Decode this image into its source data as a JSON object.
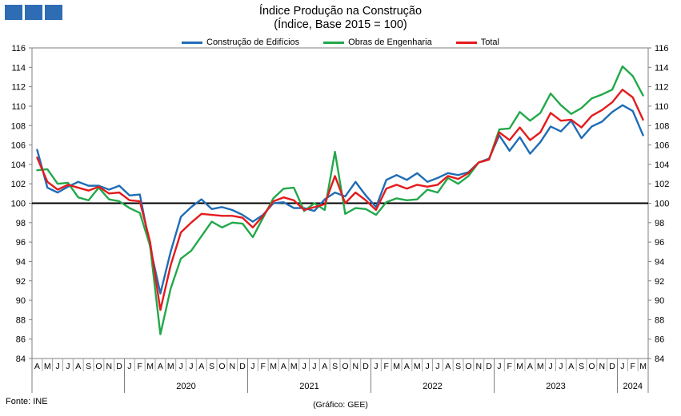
{
  "header": {
    "title_line1": "Índice Produção na Construção",
    "title_line2": "(Índice, Base 2015 = 100)"
  },
  "footer": {
    "source": "Fonte: INE",
    "credit": "(Gráfico: GEE)"
  },
  "colors": {
    "edificios": "#1f6db5",
    "engenharia": "#22a84a",
    "total": "#e41a1c",
    "logo": "#2e6db4"
  },
  "chart_data": {
    "type": "line",
    "title": "Índice Produção na Construção (Índice, Base 2015 = 100)",
    "ylim": [
      84,
      116
    ],
    "yticks": [
      84,
      86,
      88,
      90,
      92,
      94,
      96,
      98,
      100,
      102,
      104,
      106,
      108,
      110,
      112,
      114,
      116
    ],
    "reference_line": 100,
    "legend_position": "top-center",
    "month_labels": [
      "A",
      "M",
      "J",
      "J",
      "A",
      "S",
      "O",
      "N",
      "D",
      "J",
      "F",
      "M",
      "A",
      "M",
      "J",
      "J",
      "A",
      "S",
      "O",
      "N",
      "D",
      "J",
      "F",
      "M",
      "A",
      "M",
      "J",
      "J",
      "A",
      "S",
      "O",
      "N",
      "D",
      "J",
      "F",
      "M",
      "A",
      "M",
      "J",
      "J",
      "A",
      "S",
      "O",
      "N",
      "D",
      "J",
      "F",
      "M",
      "A",
      "M",
      "J",
      "J",
      "A",
      "S",
      "O",
      "N",
      "D",
      "J",
      "F",
      "M"
    ],
    "year_labels": [
      {
        "label": "2020",
        "start": 9,
        "end": 20
      },
      {
        "label": "2021",
        "start": 21,
        "end": 32
      },
      {
        "label": "2022",
        "start": 33,
        "end": 44
      },
      {
        "label": "2023",
        "start": 45,
        "end": 56
      },
      {
        "label": "2024",
        "start": 57,
        "end": 59
      }
    ],
    "year_separators": [
      9,
      21,
      33,
      45,
      57
    ],
    "series": [
      {
        "name": "Construção de Edifícios",
        "color_key": "edificios",
        "values": [
          105.5,
          101.6,
          101.1,
          101.7,
          102.2,
          101.8,
          101.8,
          101.4,
          101.8,
          100.8,
          100.9,
          95.5,
          90.7,
          95.0,
          98.6,
          99.6,
          100.4,
          99.4,
          99.6,
          99.3,
          98.8,
          98.1,
          98.8,
          100.0,
          100.1,
          99.5,
          99.5,
          99.2,
          100.4,
          101.1,
          100.7,
          102.2,
          100.8,
          99.6,
          102.4,
          102.9,
          102.4,
          103.1,
          102.2,
          102.6,
          103.1,
          102.9,
          103.2,
          104.2,
          104.6,
          107.0,
          105.4,
          106.8,
          105.1,
          106.3,
          107.9,
          107.4,
          108.5,
          106.7,
          107.9,
          108.4,
          109.4,
          110.1,
          109.5,
          107.0
        ]
      },
      {
        "name": "Obras de Engenharia",
        "color_key": "engenharia",
        "values": [
          103.4,
          103.5,
          102.0,
          102.1,
          100.6,
          100.3,
          101.6,
          100.4,
          100.2,
          99.5,
          99.0,
          95.6,
          86.5,
          91.2,
          94.3,
          95.1,
          96.6,
          98.1,
          97.5,
          98.0,
          97.9,
          96.5,
          98.5,
          100.5,
          101.5,
          101.6,
          99.2,
          100.0,
          99.3,
          105.3,
          98.9,
          99.5,
          99.4,
          98.8,
          100.1,
          100.5,
          100.3,
          100.4,
          101.4,
          101.1,
          102.6,
          102.0,
          102.8,
          104.2,
          104.5,
          107.6,
          107.7,
          109.4,
          108.5,
          109.3,
          111.3,
          110.1,
          109.2,
          109.8,
          110.8,
          111.2,
          111.7,
          114.1,
          113.1,
          111.1
        ]
      },
      {
        "name": "Total",
        "color_key": "total",
        "values": [
          104.7,
          102.2,
          101.4,
          101.9,
          101.6,
          101.3,
          101.7,
          101.0,
          101.1,
          100.3,
          100.2,
          96.0,
          89.0,
          93.6,
          97.0,
          98.0,
          98.9,
          98.8,
          98.7,
          98.7,
          98.5,
          97.5,
          98.7,
          100.2,
          100.6,
          100.3,
          99.3,
          99.6,
          99.9,
          102.8,
          100.0,
          101.1,
          100.3,
          99.3,
          101.5,
          101.9,
          101.5,
          101.9,
          101.7,
          101.9,
          102.8,
          102.5,
          103.1,
          104.2,
          104.5,
          107.3,
          106.5,
          107.8,
          106.5,
          107.3,
          109.3,
          108.5,
          108.6,
          107.8,
          109.0,
          109.6,
          110.4,
          111.7,
          110.9,
          108.6
        ]
      }
    ]
  }
}
